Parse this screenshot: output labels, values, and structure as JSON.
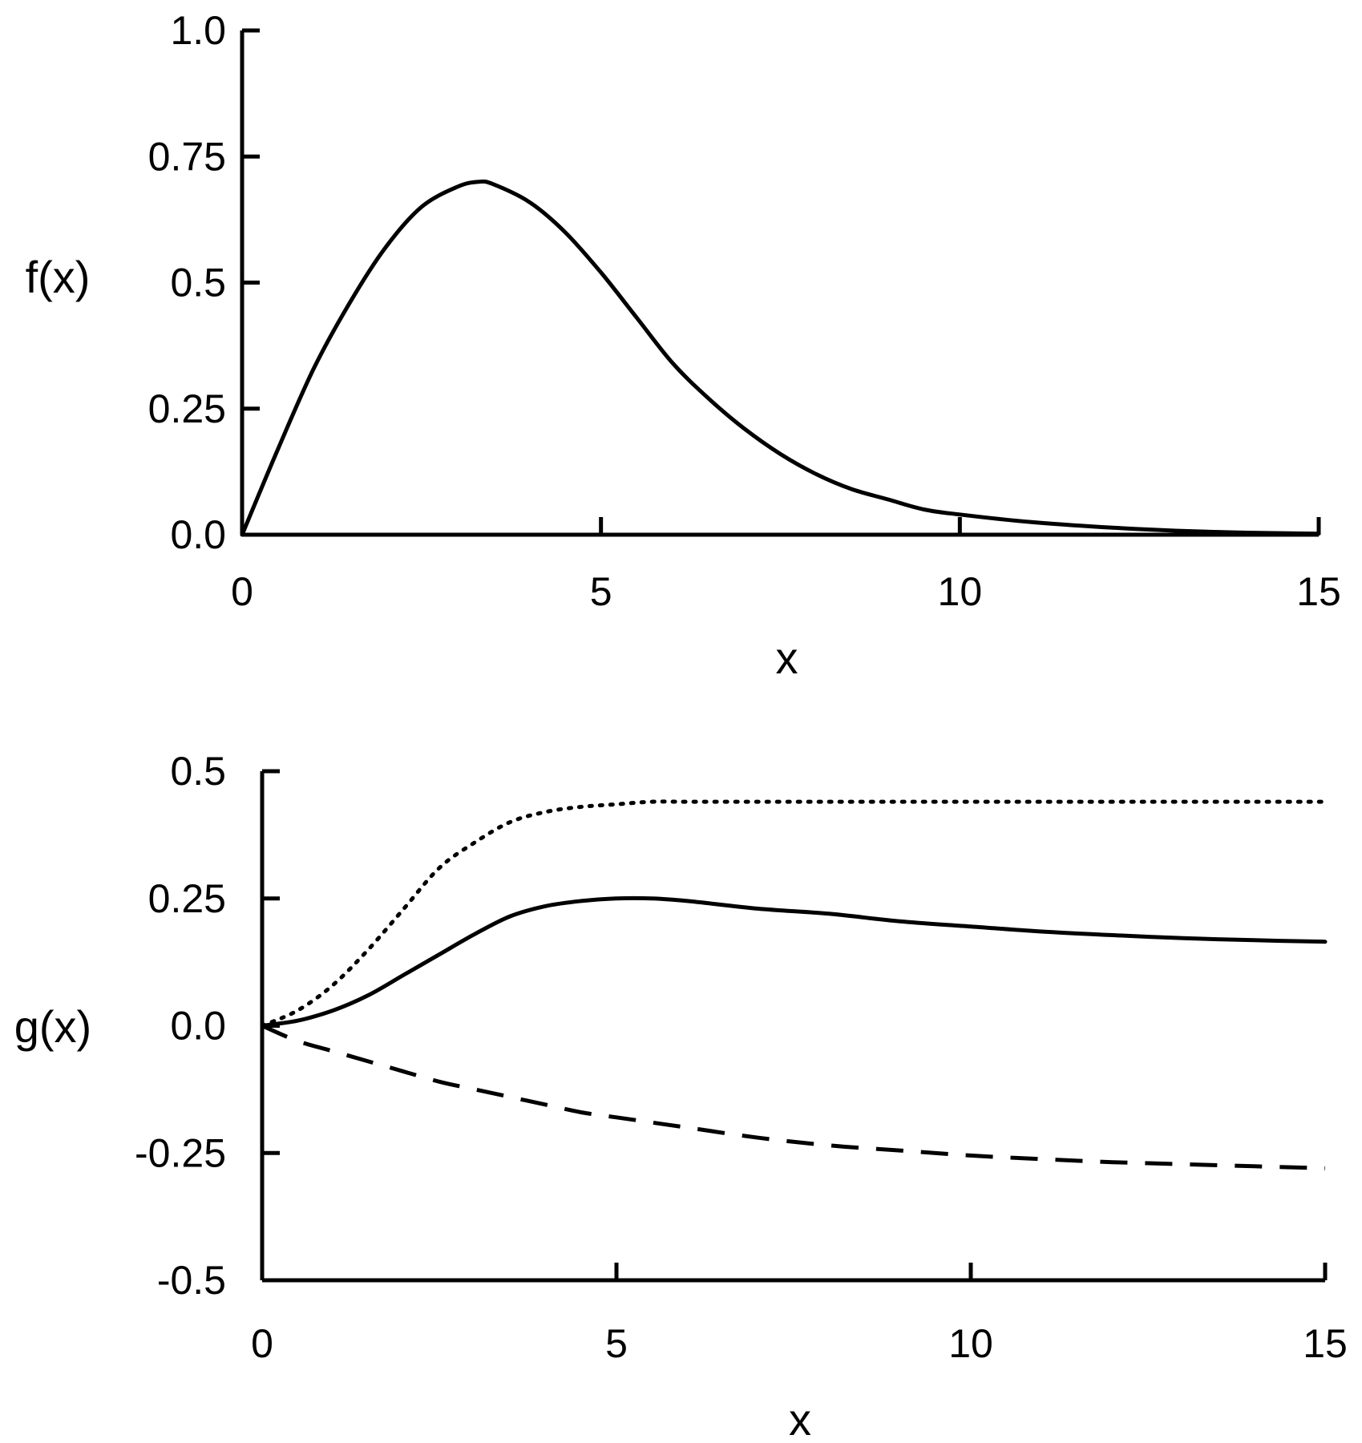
{
  "chart_data": [
    {
      "type": "line",
      "title": "",
      "xlabel": "x",
      "ylabel": "f(x)",
      "xlim": [
        0,
        15
      ],
      "ylim": [
        0,
        1.0
      ],
      "x_ticks": [
        0,
        5,
        10,
        15
      ],
      "x_tick_labels": [
        "0",
        "5",
        "10",
        "15"
      ],
      "y_ticks": [
        0,
        0.25,
        0.5,
        0.75,
        1.0
      ],
      "y_tick_labels": [
        "0.0",
        "0.25",
        "0.5",
        "0.75",
        "1.0"
      ],
      "grid": false,
      "series": [
        {
          "style": "solid",
          "x": [
            0,
            0.5,
            1,
            1.5,
            2,
            2.5,
            3,
            3.3,
            3.5,
            4,
            4.5,
            5,
            5.5,
            6,
            6.5,
            7,
            7.5,
            8,
            8.5,
            9,
            9.5,
            10,
            11,
            12,
            13,
            14,
            15
          ],
          "y": [
            0,
            0.17,
            0.33,
            0.46,
            0.57,
            0.65,
            0.69,
            0.7,
            0.695,
            0.66,
            0.6,
            0.52,
            0.43,
            0.34,
            0.27,
            0.21,
            0.16,
            0.12,
            0.09,
            0.07,
            0.05,
            0.04,
            0.025,
            0.015,
            0.008,
            0.004,
            0.002
          ]
        }
      ]
    },
    {
      "type": "line",
      "title": "",
      "xlabel": "x",
      "ylabel": "g(x)",
      "xlim": [
        0,
        15
      ],
      "ylim": [
        -0.5,
        0.5
      ],
      "x_ticks": [
        0,
        5,
        10,
        15
      ],
      "x_tick_labels": [
        "0",
        "5",
        "10",
        "15"
      ],
      "y_ticks": [
        -0.5,
        -0.25,
        0,
        0.25,
        0.5
      ],
      "y_tick_labels": [
        "-0.5",
        "-0.25",
        "0.0",
        "0.25",
        "0.5"
      ],
      "grid": false,
      "series": [
        {
          "style": "dotted",
          "x": [
            0,
            0.5,
            1,
            1.5,
            2,
            2.5,
            3,
            3.5,
            4,
            4.5,
            5,
            5.5,
            6,
            7,
            8,
            9,
            10,
            11,
            12,
            13,
            14,
            15
          ],
          "y": [
            0,
            0.03,
            0.08,
            0.15,
            0.23,
            0.31,
            0.36,
            0.4,
            0.42,
            0.43,
            0.435,
            0.44,
            0.44,
            0.44,
            0.44,
            0.44,
            0.44,
            0.44,
            0.44,
            0.44,
            0.44,
            0.44
          ]
        },
        {
          "style": "solid",
          "x": [
            0,
            0.5,
            1,
            1.5,
            2,
            2.5,
            3,
            3.5,
            4,
            4.5,
            5,
            5.5,
            6,
            7,
            8,
            9,
            10,
            11,
            12,
            13,
            14,
            15
          ],
          "y": [
            0,
            0.01,
            0.03,
            0.06,
            0.1,
            0.14,
            0.18,
            0.215,
            0.235,
            0.245,
            0.25,
            0.25,
            0.245,
            0.23,
            0.22,
            0.205,
            0.195,
            0.185,
            0.178,
            0.172,
            0.168,
            0.165
          ]
        },
        {
          "style": "dashed",
          "x": [
            0,
            0.5,
            1,
            1.5,
            2,
            2.5,
            3,
            3.5,
            4,
            4.5,
            5,
            5.5,
            6,
            7,
            8,
            9,
            10,
            11,
            12,
            13,
            14,
            15
          ],
          "y": [
            0,
            -0.03,
            -0.05,
            -0.07,
            -0.09,
            -0.11,
            -0.125,
            -0.14,
            -0.155,
            -0.17,
            -0.18,
            -0.19,
            -0.2,
            -0.22,
            -0.235,
            -0.245,
            -0.255,
            -0.262,
            -0.268,
            -0.272,
            -0.276,
            -0.28
          ]
        }
      ]
    }
  ]
}
